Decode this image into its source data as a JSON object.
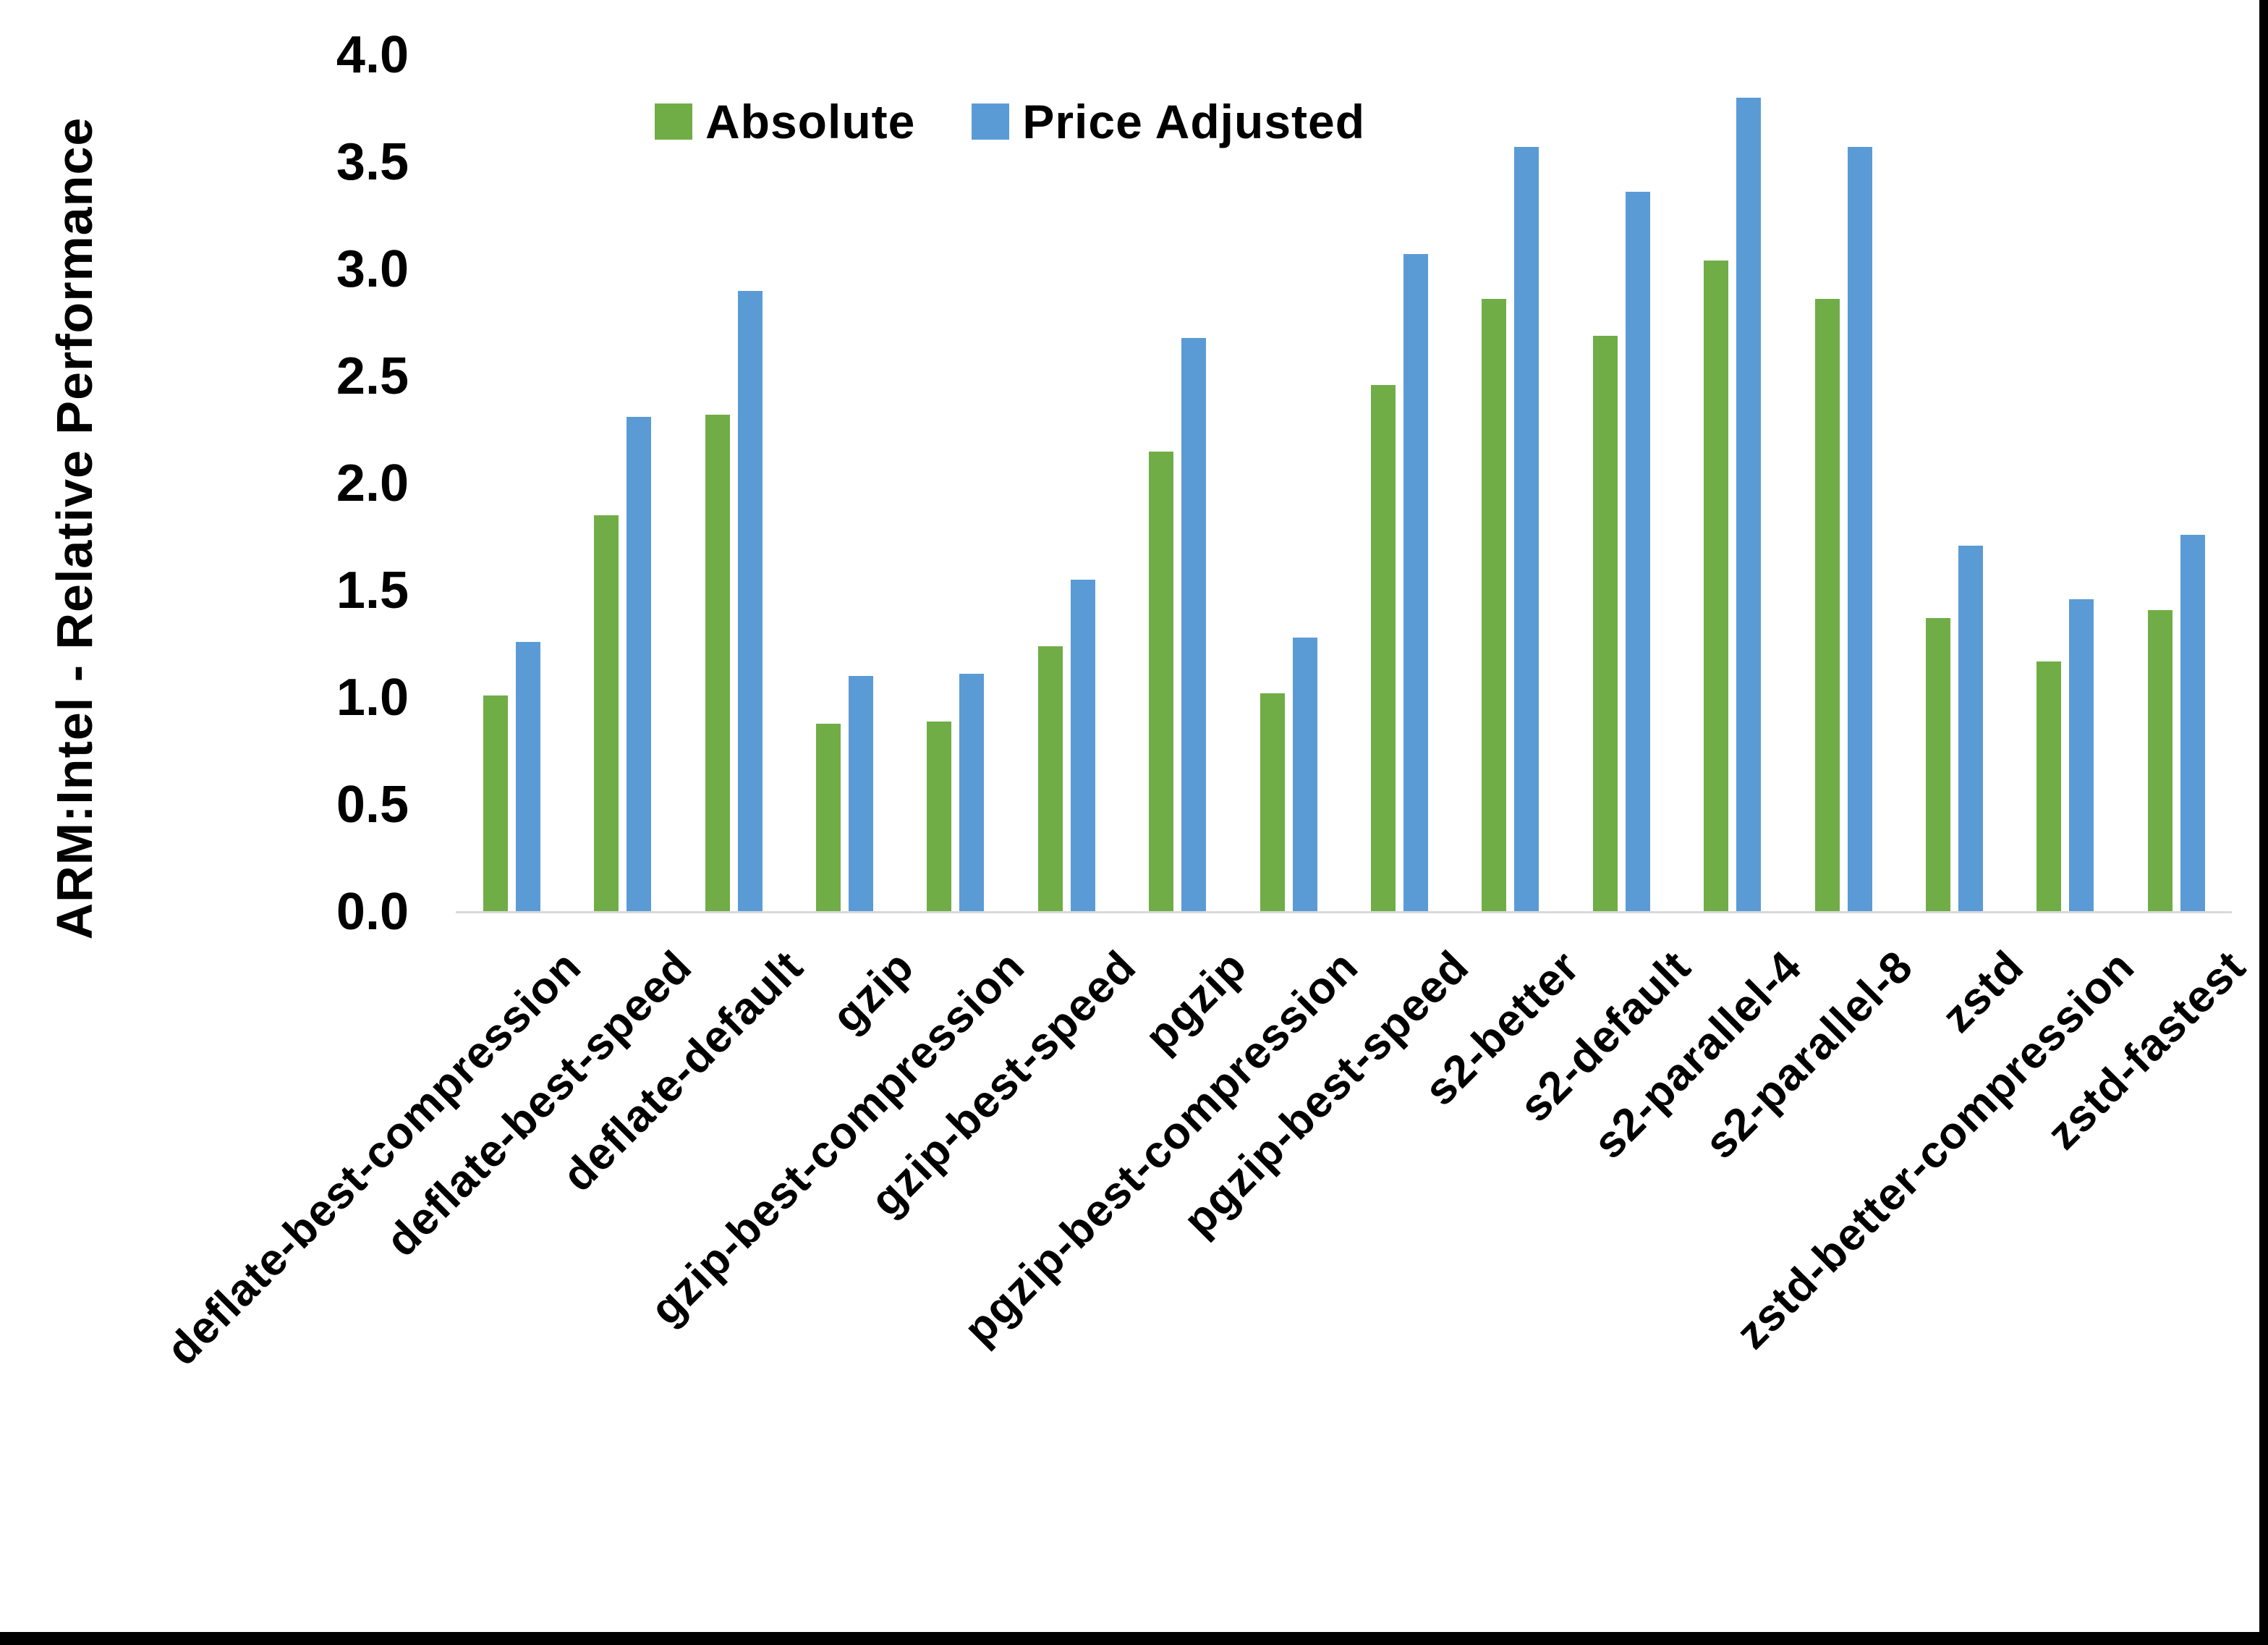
{
  "figure": {
    "y_axis": {
      "title": "ARM:Intel - Relative Performance",
      "tick_labels": [
        "0.0",
        "0.5",
        "1.0",
        "1.5",
        "2.0",
        "2.5",
        "3.0",
        "3.5",
        "4.0"
      ]
    },
    "legend": [
      {
        "label": "Absolute",
        "color": "#70AD47"
      },
      {
        "label": "Price Adjusted",
        "color": "#5B9BD5"
      }
    ]
  },
  "chart_data": {
    "type": "bar",
    "title": "",
    "xlabel": "",
    "ylabel": "ARM:Intel - Relative Performance",
    "ylim": [
      0.0,
      4.0
    ],
    "ytick_step": 0.5,
    "grid": false,
    "legend_position": "top-center",
    "categories": [
      "deflate-best-compression",
      "deflate-best-speed",
      "deflate-default",
      "gzip",
      "gzip-best-compression",
      "gzip-best-speed",
      "pgzip",
      "pgzip-best-compression",
      "pgzip-best-speed",
      "s2-better",
      "s2-default",
      "s2-parallel-4",
      "s2-parallel-8",
      "zstd",
      "zstd-better-compression",
      "zstd-fastest"
    ],
    "series": [
      {
        "name": "Absolute",
        "color": "#70AD47",
        "values": [
          1.01,
          1.85,
          2.32,
          0.88,
          0.89,
          1.24,
          2.15,
          1.02,
          2.46,
          2.86,
          2.69,
          3.04,
          2.86,
          1.37,
          1.17,
          1.41
        ]
      },
      {
        "name": "Price Adjusted",
        "color": "#5B9BD5",
        "values": [
          1.26,
          2.31,
          2.9,
          1.1,
          1.11,
          1.55,
          2.68,
          1.28,
          3.07,
          3.57,
          3.36,
          3.8,
          3.57,
          1.71,
          1.46,
          1.76
        ]
      }
    ]
  }
}
